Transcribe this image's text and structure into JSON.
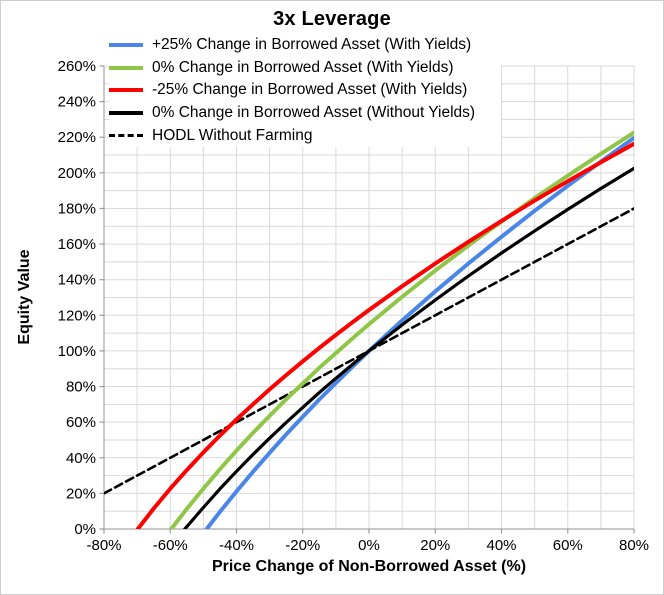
{
  "window": {
    "background": "#ffffff",
    "border_color": "#cfcfcf"
  },
  "chart_data": {
    "type": "line",
    "title": "3x Leverage",
    "xlabel": "Price Change of Non-Borrowed Asset (%)",
    "ylabel": "Equity Value",
    "x_range": [
      -80,
      80
    ],
    "y_range": [
      0,
      260
    ],
    "grid": true,
    "grid_step": 10,
    "legend_position": "top-left",
    "x_tick_values": [
      -80,
      -60,
      -40,
      -20,
      0,
      20,
      40,
      60,
      80
    ],
    "x_tick_labels": [
      "-80%",
      "-60%",
      "-40%",
      "-20%",
      "0%",
      "20%",
      "40%",
      "60%",
      "80%"
    ],
    "y_tick_values": [
      0,
      20,
      40,
      60,
      80,
      100,
      120,
      140,
      160,
      180,
      200,
      220,
      240,
      260
    ],
    "y_tick_labels": [
      "0%",
      "20%",
      "40%",
      "60%",
      "80%",
      "100%",
      "120%",
      "140%",
      "160%",
      "180%",
      "200%",
      "220%",
      "240%",
      "260%"
    ],
    "colors": {
      "grid": "#d9d9d9",
      "axis": "#a6a6a6",
      "tick": "#9a9a9a",
      "text": "#000000"
    },
    "series": [
      {
        "name": "+25% Change in Borrowed Asset (With Yields)",
        "color": "#4a86e8",
        "dash": false,
        "width": 4,
        "points": [
          [
            -49,
            0
          ],
          [
            -45,
            9.6
          ],
          [
            -40,
            21.1
          ],
          [
            -35,
            32.2
          ],
          [
            -30,
            42.8
          ],
          [
            -25,
            53.1
          ],
          [
            -20,
            63
          ],
          [
            -15,
            72.7
          ],
          [
            -10,
            82
          ],
          [
            -5,
            91.1
          ],
          [
            0,
            100
          ],
          [
            10,
            117.1
          ],
          [
            20,
            133.4
          ],
          [
            30,
            149.1
          ],
          [
            40,
            164.1
          ],
          [
            50,
            178.7
          ],
          [
            60,
            192.7
          ],
          [
            70,
            206.3
          ],
          [
            80,
            219.6
          ]
        ]
      },
      {
        "name": "0% Change in Borrowed Asset (With Yields)",
        "color": "#90c648",
        "dash": false,
        "width": 4,
        "points": [
          [
            -59.7,
            0
          ],
          [
            -55,
            11.3
          ],
          [
            -50,
            22.7
          ],
          [
            -45,
            33.6
          ],
          [
            -40,
            44
          ],
          [
            -35,
            54
          ],
          [
            -30,
            63.5
          ],
          [
            -25,
            72.9
          ],
          [
            -20,
            81.7
          ],
          [
            -15,
            90.5
          ],
          [
            -10,
            98.8
          ],
          [
            -5,
            107
          ],
          [
            0,
            115
          ],
          [
            10,
            130.4
          ],
          [
            20,
            145.1
          ],
          [
            30,
            159.2
          ],
          [
            40,
            172.7
          ],
          [
            50,
            185.8
          ],
          [
            60,
            198.4
          ],
          [
            70,
            210.7
          ],
          [
            80,
            222.6
          ]
        ]
      },
      {
        "name": "-25% Change in Borrowed Asset (With Yields)",
        "color": "#fe0000",
        "dash": false,
        "width": 4,
        "points": [
          [
            -69.8,
            0
          ],
          [
            -65,
            11.5
          ],
          [
            -60,
            22.7
          ],
          [
            -55,
            33.1
          ],
          [
            -50,
            43
          ],
          [
            -45,
            52.5
          ],
          [
            -40,
            61.5
          ],
          [
            -35,
            70.1
          ],
          [
            -30,
            78.4
          ],
          [
            -25,
            86.4
          ],
          [
            -20,
            94.2
          ],
          [
            -15,
            101.7
          ],
          [
            -10,
            109
          ],
          [
            -5,
            116.1
          ],
          [
            0,
            123
          ],
          [
            10,
            136.3
          ],
          [
            20,
            149.1
          ],
          [
            30,
            161.3
          ],
          [
            40,
            173
          ],
          [
            50,
            184.4
          ],
          [
            60,
            195.3
          ],
          [
            70,
            205.9
          ],
          [
            80,
            216.3
          ]
        ]
      },
      {
        "name": "0% Change in Borrowed Asset (Without Yields)",
        "color": "#000000",
        "dash": false,
        "width": 3.2,
        "points": [
          [
            -55.6,
            0
          ],
          [
            -50,
            12.1
          ],
          [
            -45,
            22.5
          ],
          [
            -40,
            32.4
          ],
          [
            -35,
            41.9
          ],
          [
            -30,
            51
          ],
          [
            -25,
            59.8
          ],
          [
            -20,
            68.3
          ],
          [
            -15,
            76.6
          ],
          [
            -10,
            84.6
          ],
          [
            -5,
            92.4
          ],
          [
            0,
            100
          ],
          [
            10,
            114.6
          ],
          [
            20,
            128.6
          ],
          [
            30,
            142.1
          ],
          [
            40,
            155
          ],
          [
            50,
            167.4
          ],
          [
            60,
            179.5
          ],
          [
            70,
            191.2
          ],
          [
            80,
            202.5
          ]
        ]
      },
      {
        "name": "HODL Without Farming",
        "color": "#000000",
        "dash": true,
        "width": 2.6,
        "points": [
          [
            -80,
            20
          ],
          [
            0,
            100
          ],
          [
            80,
            180
          ]
        ]
      }
    ]
  }
}
